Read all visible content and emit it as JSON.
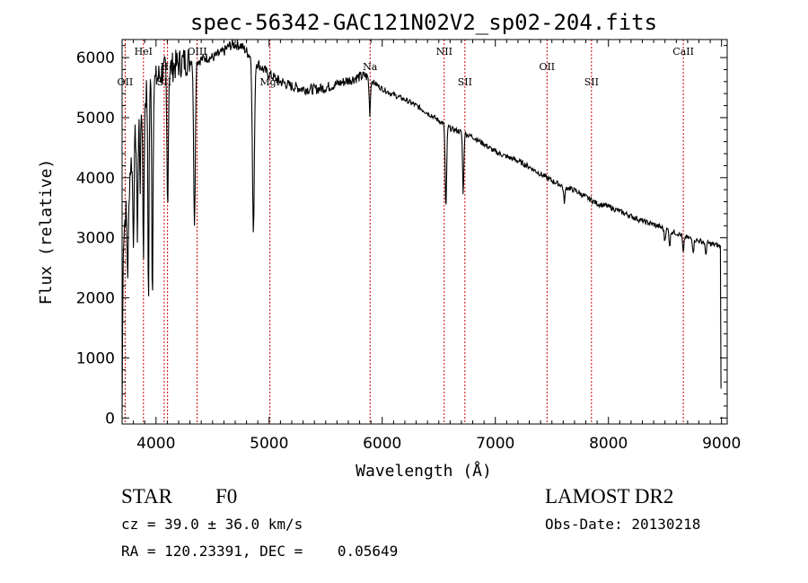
{
  "chart_data": {
    "type": "line",
    "title": "spec-56342-GAC121N02V2_sp02-204.fits",
    "xlabel": "Wavelength (Å)",
    "ylabel": "Flux (relative)",
    "xlim": [
      3700,
      9050
    ],
    "ylim": [
      -100,
      6300
    ],
    "xticks": [
      4000,
      5000,
      6000,
      7000,
      8000,
      9000
    ],
    "yticks": [
      0,
      1000,
      2000,
      3000,
      4000,
      5000,
      6000
    ],
    "line_color": "#000000",
    "marker_color": "#cc0000",
    "continuum": [
      [
        3700,
        100
      ],
      [
        3710,
        2900
      ],
      [
        3740,
        3700
      ],
      [
        3780,
        4250
      ],
      [
        3820,
        4750
      ],
      [
        3860,
        5100
      ],
      [
        3900,
        5350
      ],
      [
        3940,
        5500
      ],
      [
        3980,
        5580
      ],
      [
        4020,
        5680
      ],
      [
        4060,
        5750
      ],
      [
        4100,
        5800
      ],
      [
        4150,
        5850
      ],
      [
        4200,
        5900
      ],
      [
        4260,
        5950
      ],
      [
        4320,
        5950
      ],
      [
        4380,
        5950
      ],
      [
        4440,
        6000
      ],
      [
        4500,
        6000
      ],
      [
        4550,
        6050
      ],
      [
        4600,
        6100
      ],
      [
        4650,
        6200
      ],
      [
        4700,
        6220
      ],
      [
        4750,
        6200
      ],
      [
        4800,
        6100
      ],
      [
        4850,
        6000
      ],
      [
        4900,
        5900
      ],
      [
        4950,
        5800
      ],
      [
        5000,
        5720
      ],
      [
        5100,
        5600
      ],
      [
        5200,
        5520
      ],
      [
        5300,
        5480
      ],
      [
        5400,
        5470
      ],
      [
        5500,
        5500
      ],
      [
        5600,
        5560
      ],
      [
        5700,
        5620
      ],
      [
        5800,
        5680
      ],
      [
        5850,
        5700
      ],
      [
        5900,
        5620
      ],
      [
        6000,
        5480
      ],
      [
        6100,
        5380
      ],
      [
        6200,
        5300
      ],
      [
        6300,
        5200
      ],
      [
        6400,
        5080
      ],
      [
        6500,
        4950
      ],
      [
        6600,
        4820
      ],
      [
        6700,
        4760
      ],
      [
        6800,
        4680
      ],
      [
        6900,
        4560
      ],
      [
        7000,
        4430
      ],
      [
        7100,
        4350
      ],
      [
        7200,
        4280
      ],
      [
        7300,
        4180
      ],
      [
        7400,
        4060
      ],
      [
        7500,
        3950
      ],
      [
        7600,
        3860
      ],
      [
        7700,
        3790
      ],
      [
        7800,
        3680
      ],
      [
        7900,
        3570
      ],
      [
        8000,
        3520
      ],
      [
        8100,
        3440
      ],
      [
        8200,
        3360
      ],
      [
        8300,
        3280
      ],
      [
        8400,
        3220
      ],
      [
        8500,
        3150
      ],
      [
        8600,
        3080
      ],
      [
        8700,
        3000
      ],
      [
        8800,
        2950
      ],
      [
        8900,
        2900
      ],
      [
        8960,
        2880
      ],
      [
        8990,
        2850
      ],
      [
        9000,
        500
      ]
    ],
    "absorption": [
      [
        3750,
        1400,
        10
      ],
      [
        3800,
        1500,
        8
      ],
      [
        3835,
        1800,
        8
      ],
      [
        3860,
        1200,
        6
      ],
      [
        3889,
        2500,
        8
      ],
      [
        3933,
        3600,
        7
      ],
      [
        3968,
        3700,
        7
      ],
      [
        4102,
        2200,
        9
      ],
      [
        4340,
        2800,
        10
      ],
      [
        4861,
        2900,
        12
      ],
      [
        5890,
        550,
        8
      ],
      [
        6563,
        1400,
        9
      ],
      [
        6716,
        1000,
        8
      ],
      [
        7610,
        250,
        10
      ],
      [
        8498,
        200,
        8
      ],
      [
        8542,
        250,
        8
      ],
      [
        8662,
        300,
        8
      ],
      [
        8750,
        200,
        8
      ],
      [
        8860,
        200,
        8
      ]
    ],
    "line_markers": [
      {
        "label": "OII",
        "wavelength": 3727,
        "row": "low"
      },
      {
        "label": "HeI",
        "wavelength": 3889,
        "row": "high"
      },
      {
        "label": "SII",
        "wavelength": 4072,
        "row": "low"
      },
      {
        "label": "Hδ",
        "wavelength": 4102,
        "row": "mid"
      },
      {
        "label": "OIII",
        "wavelength": 4363,
        "row": "high"
      },
      {
        "label": "MgI",
        "wavelength": 5007,
        "row": "low"
      },
      {
        "label": "Na",
        "wavelength": 5893,
        "row": "mid"
      },
      {
        "label": "NII",
        "wavelength": 6548,
        "row": "high"
      },
      {
        "label": "SII",
        "wavelength": 6731,
        "row": "low"
      },
      {
        "label": "OII",
        "wavelength": 7457,
        "row": "mid"
      },
      {
        "label": "SII",
        "wavelength": 7850,
        "row": "low"
      },
      {
        "label": "CaII",
        "wavelength": 8662,
        "row": "high"
      }
    ]
  },
  "info": {
    "object_class": "STAR",
    "subclass": "F0",
    "survey": "LAMOST DR2",
    "redshift": "cz = 39.0 ± 36.0 km/s",
    "obs_date": "Obs-Date: 20130218",
    "coords": "RA = 120.23391, DEC =    0.05649"
  }
}
